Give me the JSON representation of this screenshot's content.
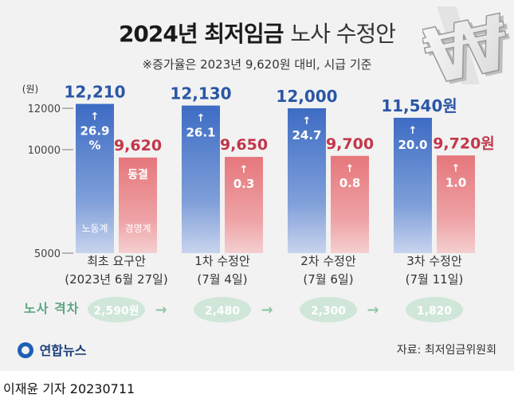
{
  "header": {
    "title_strong": "2024년 최저임금",
    "title_light": "노사 수정안",
    "subtitle": "※증가율은 2023년 9,620원 대비, 시급 기준"
  },
  "logo": {
    "symbol": "₩"
  },
  "chart_data": {
    "type": "bar",
    "ylabel": "(원)",
    "ylim": [
      5000,
      12500
    ],
    "yticks": [
      5000,
      10000,
      12000
    ],
    "ytick_labels": [
      "5000",
      "10000",
      "12000"
    ],
    "categories": [
      {
        "line1": "최초 요구안",
        "line2": "(2023년 6월 27일)"
      },
      {
        "line1": "1차 수정안",
        "line2": "(7월 4일)"
      },
      {
        "line1": "2차 수정안",
        "line2": "(7월 6일)"
      },
      {
        "line1": "3차 수정안",
        "line2": "(7월 11일)"
      }
    ],
    "series": [
      {
        "name": "노동계",
        "color": "#3f6fc4",
        "values": [
          12210,
          12130,
          12000,
          11540
        ],
        "value_labels": [
          "12,210",
          "12,130",
          "12,000",
          "11,540원"
        ],
        "rates": [
          "26.9\n%",
          "26.1",
          "24.7",
          "20.0"
        ]
      },
      {
        "name": "경영계",
        "color": "#e57c80",
        "values": [
          9620,
          9650,
          9700,
          9720
        ],
        "value_labels": [
          "9,620",
          "9,650",
          "9,700",
          "9,720원"
        ],
        "rates": [
          "동결",
          "0.3",
          "0.8",
          "1.0"
        ]
      }
    ],
    "gap_label": "노사 격차",
    "gaps": [
      "2,590원",
      "2,480",
      "2,300",
      "1,820"
    ]
  },
  "footer": {
    "brand": "연합뉴스",
    "source": "자료: 최저임금위원회",
    "byline": "이재윤 기자  20230711"
  },
  "colors": {
    "labor_text": "#2b56a6",
    "biz_text": "#c2374a",
    "gap": "#5aa882",
    "gap_bubble": "#cfe6d8"
  }
}
